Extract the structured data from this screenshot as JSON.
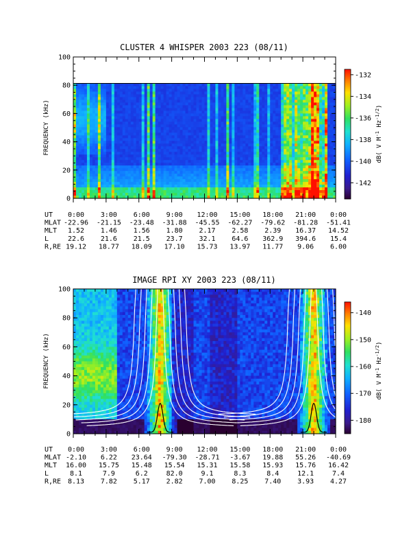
{
  "chart_data": [
    {
      "type": "heatmap",
      "title": "CLUSTER 4 WHISPER 2003 223 (08/11)",
      "ylabel": "FREQUENCY (kHz)",
      "ylim": [
        0,
        100
      ],
      "yticks": [
        "0",
        "20",
        "40",
        "60",
        "80",
        "100"
      ],
      "data_top_khz": 80,
      "colorbar": {
        "label": "dB( V M⁻¹ Hz⁻¹ᐟ²)",
        "label_base": "dB( V M",
        "label_exp1": "-1",
        "label_mid": " Hz",
        "label_exp2": "-1/2",
        "label_end": ")",
        "range": [
          -143.5,
          -131.5
        ],
        "ticks": [
          "-132",
          "-134",
          "-136",
          "-138",
          "-140",
          "-142"
        ]
      },
      "ephemeris": {
        "row_labels": [
          "UT",
          "MLAT",
          "MLT",
          "L",
          "R,RE"
        ],
        "UT": [
          "0:00",
          "3:00",
          "6:00",
          "9:00",
          "12:00",
          "15:00",
          "18:00",
          "21:00",
          "0:00"
        ],
        "MLAT": [
          "-22.96",
          "-21.15",
          "-23.48",
          "-31.88",
          "-45.55",
          "-62.27",
          "-79.62",
          "-81.28",
          "-51.41"
        ],
        "MLT": [
          "1.52",
          "1.46",
          "1.56",
          "1.80",
          "2.17",
          "2.58",
          "2.39",
          "16.37",
          "14.52"
        ],
        "L": [
          "22.6",
          "21.6",
          "21.5",
          "23.7",
          "32.1",
          "64.6",
          "362.9",
          "394.6",
          "15.4"
        ],
        "R,RE": [
          "19.12",
          "18.77",
          "18.09",
          "17.10",
          "15.73",
          "13.97",
          "11.77",
          "9.06",
          "6.00"
        ]
      },
      "mlat_row_text": "MLAT-22.96"
    },
    {
      "type": "heatmap",
      "title": "IMAGE RPI XY 2003 223 (08/11)",
      "ylabel": "FREQUENCY (kHz)",
      "ylim": [
        0,
        100
      ],
      "yticks": [
        "0",
        "20",
        "40",
        "60",
        "80",
        "100"
      ],
      "colorbar": {
        "label_base": "dB( V M",
        "label_exp1": "-1",
        "label_mid": " Hz",
        "label_exp2": "-1/2",
        "label_end": ")",
        "range": [
          -185,
          -136
        ],
        "ticks": [
          "-140",
          "-150",
          "-160",
          "-170",
          "-180"
        ]
      },
      "ephemeris": {
        "row_labels": [
          "UT",
          "MLAT",
          "MLT",
          "L",
          "R,RE"
        ],
        "UT": [
          "0:00",
          "3:00",
          "6:00",
          "9:00",
          "12:00",
          "15:00",
          "18:00",
          "21:00",
          "0:00"
        ],
        "MLAT": [
          "-2.10",
          "6.22",
          "23.64",
          "-79.30",
          "-28.71",
          "-3.67",
          "19.88",
          "55.26",
          "-40.69"
        ],
        "MLT": [
          "16.00",
          "15.75",
          "15.48",
          "15.54",
          "15.31",
          "15.58",
          "15.93",
          "15.76",
          "16.42"
        ],
        "L": [
          "8.1",
          "7.9",
          "6.2",
          "82.0",
          "9.1",
          "8.3",
          "8.4",
          "12.1",
          "7.4"
        ],
        "R,RE": [
          "8.13",
          "7.82",
          "5.17",
          "2.82",
          "7.00",
          "8.25",
          "7.40",
          "3.93",
          "4.27"
        ]
      },
      "perigee_hours": [
        7.95,
        22.0
      ]
    }
  ]
}
